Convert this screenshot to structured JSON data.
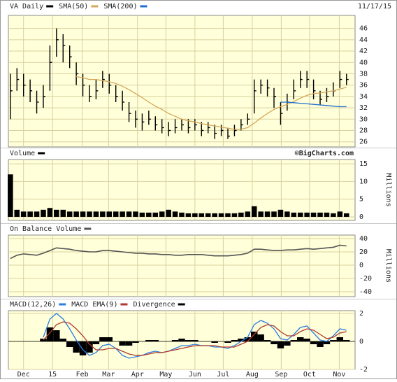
{
  "chart_data": {
    "type": "stock",
    "title": "VA Daily",
    "date": "11/17/15",
    "credit": "©BigCharts.com",
    "color": "#000000",
    "x": [
      0,
      1,
      2,
      3,
      4,
      5,
      6,
      7,
      8,
      9,
      10,
      11,
      12,
      13,
      14,
      15,
      16,
      17,
      18,
      19,
      20,
      21,
      22,
      23,
      24,
      25,
      26,
      27,
      28,
      29,
      30,
      31,
      32,
      33,
      34,
      35,
      36,
      37,
      38,
      39,
      40,
      41,
      42,
      43,
      44,
      45,
      46,
      47,
      48,
      49,
      50,
      51
    ],
    "xlim": [
      -0.3,
      52.3
    ],
    "xticks": [
      {
        "value": 2,
        "label": "Dec"
      },
      {
        "value": 6.4,
        "label": "15"
      },
      {
        "value": 10.9,
        "label": "Feb"
      },
      {
        "value": 14.9,
        "label": "Mar"
      },
      {
        "value": 19.3,
        "label": "Apr"
      },
      {
        "value": 23.6,
        "label": "May"
      },
      {
        "value": 28,
        "label": "Jun"
      },
      {
        "value": 32.3,
        "label": "Jul"
      },
      {
        "value": 36.7,
        "label": "Aug"
      },
      {
        "value": 41.1,
        "label": "Sep"
      },
      {
        "value": 45.4,
        "label": "Oct"
      },
      {
        "value": 49.9,
        "label": "Nov"
      }
    ],
    "grid": true,
    "panels": [
      {
        "type": "ohlc",
        "high": [
          38,
          39,
          38,
          37,
          35,
          36,
          43,
          46,
          45,
          43,
          40,
          38,
          36,
          37,
          38.5,
          38,
          36,
          35,
          33,
          31.5,
          31,
          31.5,
          30.5,
          30,
          29.5,
          30,
          30,
          30,
          30,
          29.5,
          29.5,
          29,
          29,
          28.5,
          29,
          30,
          31,
          37,
          37,
          37,
          35.5,
          33,
          34.5,
          37,
          38.5,
          38.5,
          37,
          35,
          35.5,
          36.5,
          38.5,
          38
        ],
        "low": [
          30,
          35,
          34,
          33,
          31,
          32,
          35,
          41,
          40,
          39,
          36,
          34,
          33,
          33.5,
          35.5,
          34.5,
          33,
          31.5,
          29.5,
          28.5,
          28,
          29,
          28,
          27.5,
          27,
          27.5,
          28,
          27.5,
          28,
          27,
          27.5,
          26.5,
          27,
          26.5,
          27,
          28,
          29,
          31,
          34.5,
          34,
          32,
          29,
          31.5,
          33.5,
          35.5,
          35.5,
          33.5,
          32.5,
          33,
          34,
          35.5,
          36
        ],
        "close": [
          35,
          37,
          36,
          35,
          33,
          34,
          40,
          44,
          43,
          41,
          38,
          36,
          34,
          35,
          37,
          36,
          34,
          33,
          31,
          30,
          29.5,
          30,
          29,
          28.5,
          28,
          28.5,
          29,
          28.5,
          29,
          28,
          28.5,
          27.5,
          28,
          27,
          28,
          29,
          30,
          35,
          36,
          35.5,
          34,
          31,
          33,
          35,
          37,
          37,
          35,
          33.5,
          34,
          35,
          37,
          37
        ],
        "series": [
          {
            "name": "SMA(50)",
            "color": "#d4a85a",
            "values": [
              null,
              null,
              null,
              null,
              null,
              null,
              null,
              null,
              null,
              null,
              37.5,
              37.3,
              37,
              37,
              36.8,
              36.6,
              36.3,
              35.8,
              35.2,
              34.5,
              33.8,
              33,
              32.3,
              31.7,
              31,
              30.5,
              30,
              29.7,
              29.5,
              29.2,
              29,
              28.8,
              28.6,
              28.4,
              28.2,
              28.2,
              28.5,
              29.3,
              30.2,
              31,
              31.7,
              32.2,
              32.6,
              33.1,
              33.7,
              34.2,
              34.5,
              34.6,
              34.8,
              35,
              35.3,
              35.6
            ]
          },
          {
            "name": "SMA(200)",
            "color": "#1f6fd0",
            "values": [
              null,
              null,
              null,
              null,
              null,
              null,
              null,
              null,
              null,
              null,
              null,
              null,
              null,
              null,
              null,
              null,
              null,
              null,
              null,
              null,
              null,
              null,
              null,
              null,
              null,
              null,
              null,
              null,
              null,
              null,
              null,
              null,
              null,
              null,
              null,
              null,
              null,
              null,
              null,
              null,
              null,
              33,
              33,
              32.9,
              32.8,
              32.7,
              32.6,
              32.5,
              32.4,
              32.3,
              32.2,
              32.2
            ]
          }
        ],
        "ylim": [
          25.1,
          48.3
        ],
        "yticks": [
          26,
          28,
          30,
          32,
          34,
          36,
          38,
          40,
          42,
          44,
          46
        ]
      },
      {
        "type": "bar",
        "title": "Volume",
        "ylabel": "Millions",
        "color": "#000000",
        "values": [
          12,
          2,
          1.5,
          1.5,
          1.5,
          2,
          2.5,
          2,
          2,
          1.5,
          1.5,
          1.5,
          1.5,
          1.5,
          1.5,
          1.5,
          1.5,
          1.5,
          1.5,
          1.5,
          1.2,
          1.2,
          1.2,
          1.5,
          2,
          1.5,
          1.2,
          1,
          1,
          1,
          1,
          1,
          1,
          1,
          1,
          1.2,
          1.5,
          3,
          1.5,
          1.5,
          1.5,
          2,
          1.5,
          1.2,
          1.2,
          1.2,
          1.2,
          1.2,
          1.2,
          1,
          1.5,
          1
        ],
        "ylim": [
          -1,
          16.2
        ],
        "yticks": [
          0,
          5,
          10,
          15
        ]
      },
      {
        "type": "line",
        "title": "On Balance Volume",
        "ylabel": "Millions",
        "color": "#555555",
        "values": [
          10,
          15,
          17,
          16,
          15,
          18,
          22,
          26,
          25,
          24,
          22,
          21,
          20,
          20,
          22,
          22,
          21,
          20,
          19,
          18,
          18,
          17,
          17,
          16,
          16,
          15,
          15,
          16,
          16,
          16,
          15,
          14,
          14,
          14,
          15,
          16,
          18,
          24,
          24,
          23,
          22,
          22,
          23,
          23,
          24,
          25,
          24,
          25,
          26,
          27,
          30,
          29
        ],
        "ylim": [
          -47.4,
          45.3
        ],
        "yticks": [
          -40,
          -20,
          0,
          20,
          40
        ]
      },
      {
        "type": "macd",
        "series": [
          {
            "name": "MACD(12,26)",
            "color": "#2a7de1",
            "values": [
              null,
              null,
              null,
              null,
              null,
              0.3,
              1.6,
              2.0,
              1.6,
              0.9,
              0.1,
              -0.6,
              -1.0,
              -0.8,
              -0.3,
              -0.2,
              -0.5,
              -1.0,
              -1.2,
              -1.1,
              -1.0,
              -0.8,
              -0.7,
              -0.8,
              -0.7,
              -0.5,
              -0.3,
              -0.3,
              -0.2,
              -0.3,
              -0.3,
              -0.4,
              -0.4,
              -0.5,
              -0.3,
              0.0,
              0.3,
              1.2,
              1.5,
              1.3,
              0.9,
              0.2,
              0.1,
              0.5,
              1.0,
              1.1,
              0.6,
              0.1,
              0.0,
              0.4,
              0.9,
              0.8
            ]
          },
          {
            "name": "MACD EMA(9)",
            "color": "#b03a2e",
            "values": [
              null,
              null,
              null,
              null,
              null,
              0.1,
              0.6,
              1.2,
              1.4,
              1.3,
              0.9,
              0.4,
              -0.2,
              -0.6,
              -0.6,
              -0.5,
              -0.5,
              -0.7,
              -0.9,
              -1.0,
              -1.0,
              -0.9,
              -0.8,
              -0.8,
              -0.7,
              -0.6,
              -0.5,
              -0.4,
              -0.3,
              -0.3,
              -0.3,
              -0.3,
              -0.4,
              -0.4,
              -0.4,
              -0.2,
              0.0,
              0.5,
              1.0,
              1.2,
              1.1,
              0.7,
              0.4,
              0.4,
              0.7,
              0.9,
              0.8,
              0.5,
              0.2,
              0.3,
              0.6,
              0.7
            ]
          },
          {
            "name": "Divergence",
            "color": "#000000",
            "type": "area",
            "values": [
              null,
              null,
              null,
              null,
              null,
              0.2,
              1.0,
              0.8,
              0.2,
              -0.4,
              -0.8,
              -1.0,
              -0.8,
              -0.2,
              0.3,
              0.3,
              0.0,
              -0.3,
              -0.3,
              -0.1,
              0.0,
              0.1,
              0.1,
              0.0,
              0.0,
              0.1,
              0.2,
              0.1,
              0.1,
              0.0,
              0.0,
              -0.1,
              0.0,
              -0.1,
              0.1,
              0.2,
              0.3,
              0.7,
              0.5,
              0.1,
              -0.2,
              -0.5,
              -0.3,
              0.1,
              0.3,
              0.2,
              -0.2,
              -0.4,
              -0.2,
              0.1,
              0.3,
              0.1
            ]
          }
        ],
        "ylim": [
          -2,
          2.2
        ],
        "yticks": [
          -2,
          0,
          2
        ]
      }
    ]
  }
}
